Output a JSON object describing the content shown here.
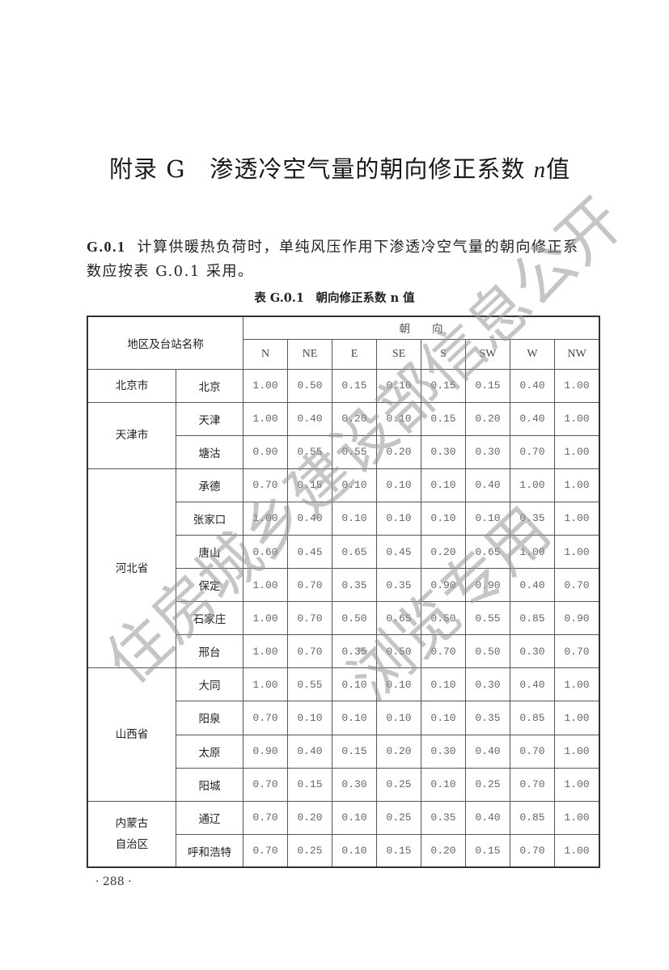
{
  "title": {
    "prefix": "附录 G　渗透冷空气量的朝向修正系数 ",
    "var": "n",
    "suffix": "值"
  },
  "clause": {
    "number": "G.0.1",
    "text": "计算供暖热负荷时，单纯风压作用下渗透冷空气量的朝向修正系数应按表 G.0.1 采用。"
  },
  "table": {
    "caption": "表 G.0.1　朝向修正系数 n 值",
    "corner_header": "地区及台站名称",
    "group_header": "朝　　向",
    "directions": [
      "N",
      "NE",
      "E",
      "SE",
      "S",
      "SW",
      "W",
      "NW"
    ],
    "regions": [
      {
        "name": "北京市",
        "stations": [
          {
            "name": "北京",
            "values": [
              "1.00",
              "0.50",
              "0.15",
              "0.10",
              "0.15",
              "0.15",
              "0.40",
              "1.00"
            ]
          }
        ]
      },
      {
        "name": "天津市",
        "stations": [
          {
            "name": "天津",
            "values": [
              "1.00",
              "0.40",
              "0.20",
              "0.10",
              "0.15",
              "0.20",
              "0.40",
              "1.00"
            ]
          },
          {
            "name": "塘沽",
            "values": [
              "0.90",
              "0.55",
              "0.55",
              "0.20",
              "0.30",
              "0.30",
              "0.70",
              "1.00"
            ]
          }
        ]
      },
      {
        "name": "河北省",
        "stations": [
          {
            "name": "承德",
            "values": [
              "0.70",
              "0.15",
              "0.10",
              "0.10",
              "0.10",
              "0.40",
              "1.00",
              "1.00"
            ]
          },
          {
            "name": "张家口",
            "values": [
              "1.00",
              "0.40",
              "0.10",
              "0.10",
              "0.10",
              "0.10",
              "0.35",
              "1.00"
            ]
          },
          {
            "name": "唐山",
            "values": [
              "0.60",
              "0.45",
              "0.65",
              "0.45",
              "0.20",
              "0.65",
              "1.00",
              "1.00"
            ]
          },
          {
            "name": "保定",
            "values": [
              "1.00",
              "0.70",
              "0.35",
              "0.35",
              "0.90",
              "0.90",
              "0.40",
              "0.70"
            ]
          },
          {
            "name": "石家庄",
            "values": [
              "1.00",
              "0.70",
              "0.50",
              "0.65",
              "0.50",
              "0.55",
              "0.85",
              "0.90"
            ]
          },
          {
            "name": "邢台",
            "values": [
              "1.00",
              "0.70",
              "0.35",
              "0.50",
              "0.70",
              "0.50",
              "0.30",
              "0.70"
            ]
          }
        ]
      },
      {
        "name": "山西省",
        "stations": [
          {
            "name": "大同",
            "values": [
              "1.00",
              "0.55",
              "0.10",
              "0.10",
              "0.10",
              "0.30",
              "0.40",
              "1.00"
            ]
          },
          {
            "name": "阳泉",
            "values": [
              "0.70",
              "0.10",
              "0.10",
              "0.10",
              "0.10",
              "0.35",
              "0.85",
              "1.00"
            ]
          },
          {
            "name": "太原",
            "values": [
              "0.90",
              "0.40",
              "0.15",
              "0.20",
              "0.30",
              "0.40",
              "0.70",
              "1.00"
            ]
          },
          {
            "name": "阳城",
            "values": [
              "0.70",
              "0.15",
              "0.30",
              "0.25",
              "0.10",
              "0.25",
              "0.70",
              "1.00"
            ]
          }
        ]
      },
      {
        "name": "内蒙古自治区",
        "stations": [
          {
            "name": "通辽",
            "values": [
              "0.70",
              "0.20",
              "0.10",
              "0.25",
              "0.35",
              "0.40",
              "0.85",
              "1.00"
            ]
          },
          {
            "name": "呼和浩特",
            "values": [
              "0.70",
              "0.25",
              "0.10",
              "0.15",
              "0.20",
              "0.15",
              "0.70",
              "1.00"
            ]
          }
        ]
      }
    ]
  },
  "watermark": {
    "line1": "住房城乡建设部信息公开",
    "line2": "浏览专用"
  },
  "page_number": "· 288 ·"
}
